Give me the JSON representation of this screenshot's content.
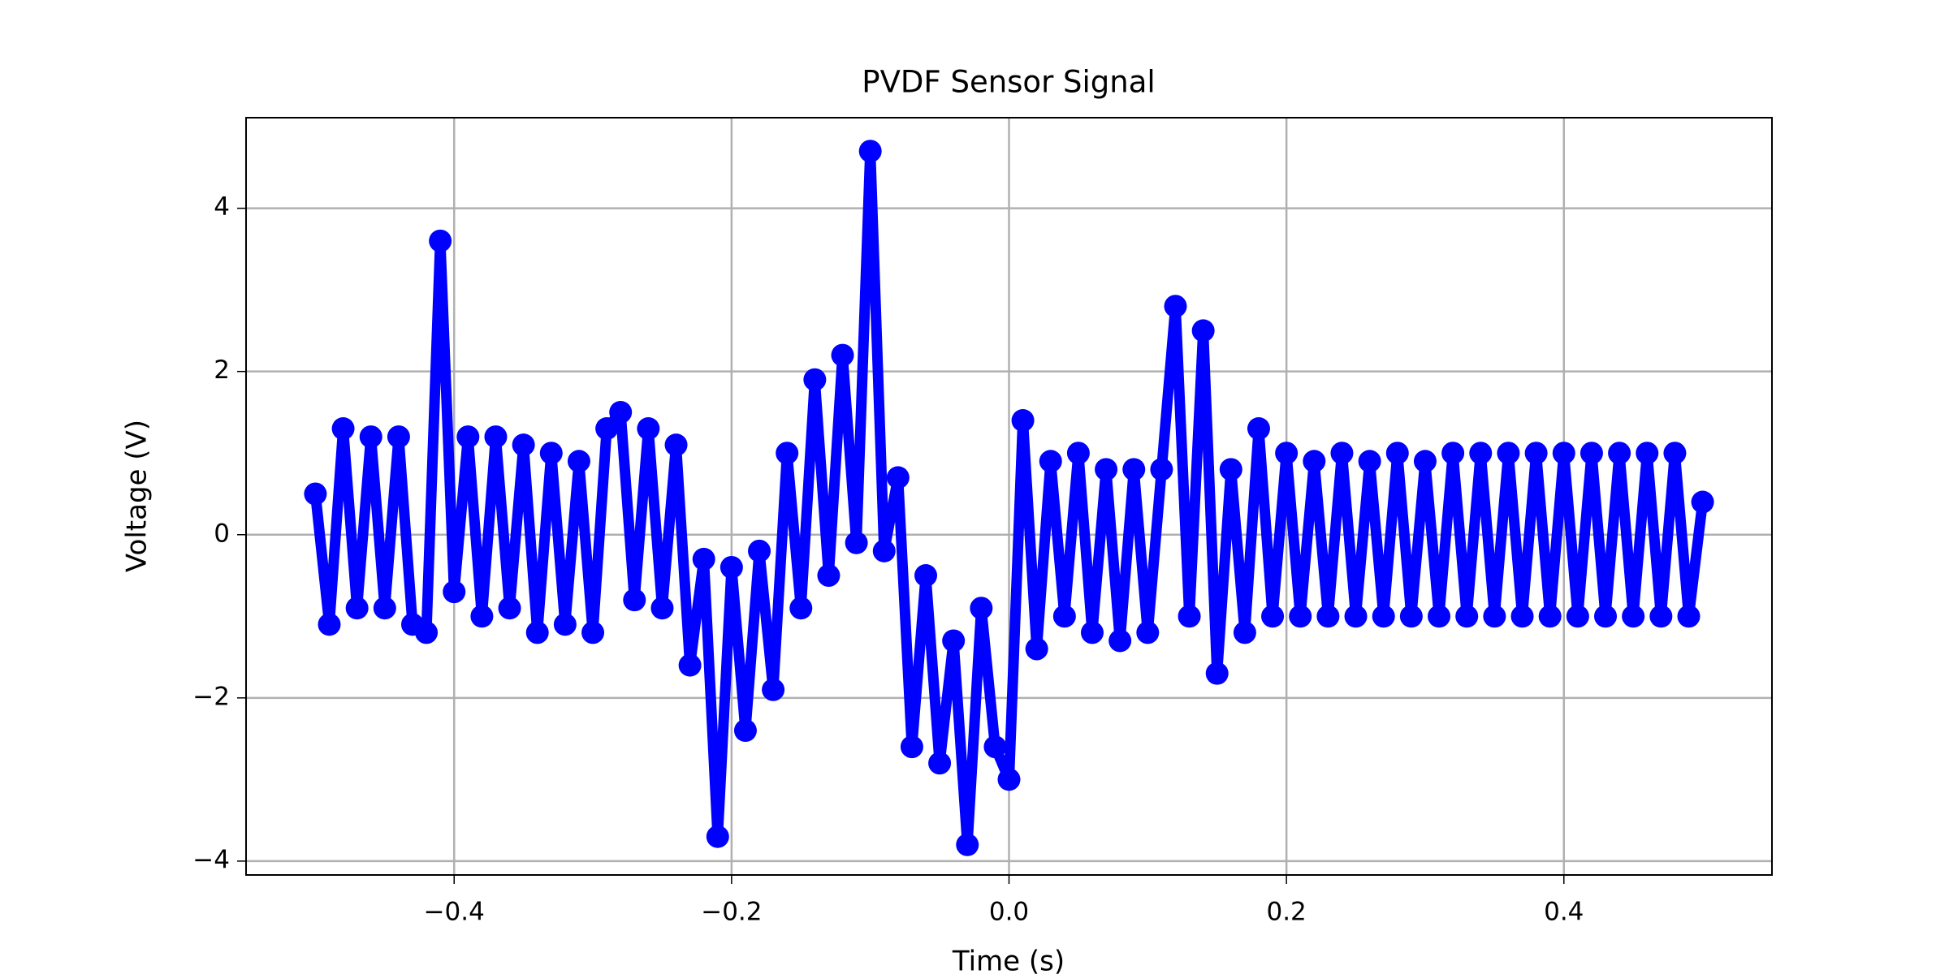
{
  "chart_data": {
    "type": "line",
    "title": "PVDF Sensor Signal",
    "x_label": "Time (s)",
    "y_label": "Voltage (V)",
    "x": [
      -0.5,
      -0.49,
      -0.48,
      -0.47,
      -0.46,
      -0.45,
      -0.44,
      -0.43,
      -0.42,
      -0.41,
      -0.4,
      -0.39,
      -0.38,
      -0.37,
      -0.36,
      -0.35,
      -0.34,
      -0.33,
      -0.32,
      -0.31,
      -0.3,
      -0.29,
      -0.28,
      -0.27,
      -0.26,
      -0.25,
      -0.24,
      -0.23,
      -0.22,
      -0.21,
      -0.2,
      -0.19,
      -0.18,
      -0.17,
      -0.16,
      -0.15,
      -0.14,
      -0.13,
      -0.12,
      -0.11,
      -0.1,
      -0.09,
      -0.08,
      -0.07,
      -0.06,
      -0.05,
      -0.04,
      -0.03,
      -0.02,
      -0.01,
      0.0,
      0.01,
      0.02,
      0.03,
      0.04,
      0.05,
      0.06,
      0.07,
      0.08,
      0.09,
      0.1,
      0.11,
      0.12,
      0.13,
      0.14,
      0.15,
      0.16,
      0.17,
      0.18,
      0.19,
      0.2,
      0.21,
      0.22,
      0.23,
      0.24,
      0.25,
      0.26,
      0.27,
      0.28,
      0.29,
      0.3,
      0.31,
      0.32,
      0.33,
      0.34,
      0.35,
      0.36,
      0.37,
      0.38,
      0.39,
      0.4,
      0.41,
      0.42,
      0.43,
      0.44,
      0.45,
      0.46,
      0.47,
      0.48,
      0.49,
      0.5
    ],
    "series": [
      {
        "color": "#0000ff",
        "values": [
          0.5,
          -1.1,
          1.3,
          -0.9,
          1.2,
          -0.9,
          1.2,
          -1.1,
          -1.2,
          3.6,
          -0.7,
          1.2,
          -1.0,
          1.2,
          -0.9,
          1.1,
          -1.2,
          1.0,
          -1.1,
          0.9,
          -1.2,
          1.3,
          1.5,
          -0.8,
          1.3,
          -0.9,
          1.1,
          -1.6,
          -0.3,
          -3.7,
          -0.4,
          -2.4,
          -0.2,
          -1.9,
          1.0,
          -0.9,
          1.9,
          -0.5,
          2.2,
          -0.1,
          4.7,
          -0.2,
          0.7,
          -2.6,
          -0.5,
          -2.8,
          -1.3,
          -3.8,
          -0.9,
          -2.6,
          -3.0,
          1.4,
          -1.4,
          0.9,
          -1.0,
          1.0,
          -1.2,
          0.8,
          -1.3,
          0.8,
          -1.2,
          0.8,
          2.8,
          -1.0,
          2.5,
          -1.7,
          0.8,
          -1.2,
          1.3,
          -1.0,
          1.0,
          -1.0,
          0.9,
          -1.0,
          1.0,
          -1.0,
          0.9,
          -1.0,
          1.0,
          -1.0,
          0.9,
          -1.0,
          1.0,
          -1.0,
          1.0,
          -1.0,
          1.0,
          -1.0,
          1.0,
          -1.0,
          1.0,
          -1.0,
          1.0,
          -1.0,
          1.0,
          -1.0,
          1.0,
          -1.0,
          1.0,
          -1.0,
          0.4
        ]
      }
    ],
    "xlim": [
      -0.55,
      0.55
    ],
    "ylim": [
      -4.17,
      5.11
    ],
    "xticks": [
      {
        "value": -0.4,
        "label": "−0.4"
      },
      {
        "value": -0.2,
        "label": "−0.2"
      },
      {
        "value": 0,
        "label": "0.0"
      },
      {
        "value": 0.2,
        "label": "0.2"
      },
      {
        "value": 0.4,
        "label": "0.4"
      }
    ],
    "yticks": [
      {
        "value": -4,
        "label": "−4"
      },
      {
        "value": -2,
        "label": "−2"
      },
      0,
      2,
      4
    ],
    "grid": true,
    "markers": true
  }
}
